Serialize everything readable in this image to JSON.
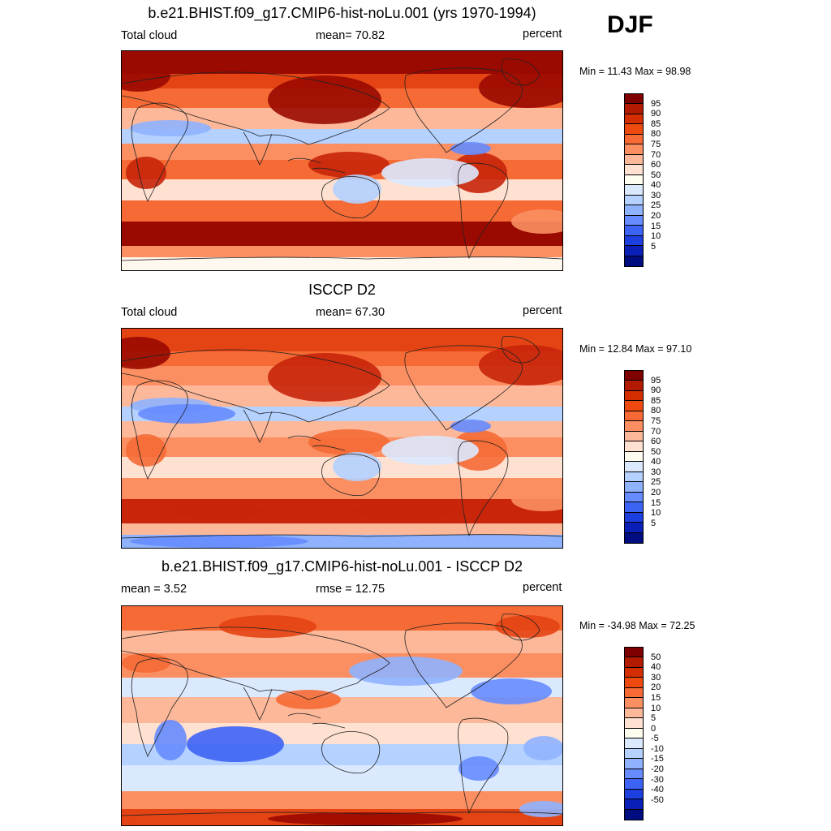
{
  "season": "DJF",
  "panels": [
    {
      "title": "b.e21.BHIST.f09_g17.CMIP6-hist-noLu.001 (yrs 1970-1994)",
      "left_label": "Total cloud",
      "center_label": "mean=  70.82",
      "right_label": "percent",
      "minmax": "Min =  11.43 Max =  98.98",
      "colorbar_ticks": [
        "95",
        "90",
        "85",
        "80",
        "75",
        "70",
        "60",
        "50",
        "40",
        "30",
        "25",
        "20",
        "15",
        "10",
        "5"
      ],
      "colorbar_colors": [
        "#7f0000",
        "#b21b00",
        "#d42e00",
        "#ee4a0f",
        "#f76a35",
        "#fb8f62",
        "#fdb89a",
        "#fee1d0",
        "#fffdf0",
        "#dbe9ff",
        "#b4d1ff",
        "#8fb2ff",
        "#668cff",
        "#3d63f5",
        "#1c3fe0",
        "#0a1fb8",
        "#000d80"
      ]
    },
    {
      "title": "ISCCP D2",
      "left_label": "Total cloud",
      "center_label": "mean=  67.30",
      "right_label": "percent",
      "minmax": "Min =  12.84 Max =  97.10",
      "colorbar_ticks": [
        "95",
        "90",
        "85",
        "80",
        "75",
        "70",
        "60",
        "50",
        "40",
        "30",
        "25",
        "20",
        "15",
        "10",
        "5"
      ],
      "colorbar_colors": [
        "#7f0000",
        "#b21b00",
        "#d42e00",
        "#ee4a0f",
        "#f76a35",
        "#fb8f62",
        "#fdb89a",
        "#fee1d0",
        "#fffdf0",
        "#dbe9ff",
        "#b4d1ff",
        "#8fb2ff",
        "#668cff",
        "#3d63f5",
        "#1c3fe0",
        "#0a1fb8",
        "#000d80"
      ]
    },
    {
      "title": "b.e21.BHIST.f09_g17.CMIP6-hist-noLu.001 - ISCCP D2",
      "left_label": "mean =   3.52",
      "center_label": "rmse =   12.75",
      "right_label": "percent",
      "minmax": "Min = -34.98 Max =  72.25",
      "colorbar_ticks": [
        "50",
        "40",
        "30",
        "20",
        "15",
        "10",
        "5",
        "0",
        "-5",
        "-10",
        "-15",
        "-20",
        "-30",
        "-40",
        "-50"
      ],
      "colorbar_colors": [
        "#7f0000",
        "#b21b00",
        "#d42e00",
        "#ee4a0f",
        "#f76a35",
        "#fb8f62",
        "#fdb89a",
        "#fee1d0",
        "#fffdf0",
        "#dbe9ff",
        "#b4d1ff",
        "#8fb2ff",
        "#668cff",
        "#3d63f5",
        "#1c3fe0",
        "#0a1fb8",
        "#000d80"
      ]
    }
  ],
  "chart_data": [
    {
      "type": "heatmap",
      "title": "b.e21.BHIST.f09_g17.CMIP6-hist-noLu.001 (yrs 1970-1994)",
      "variable": "Total cloud",
      "units": "percent",
      "mean": 70.82,
      "min": 11.43,
      "max": 98.98,
      "levels": [
        5,
        10,
        15,
        20,
        25,
        30,
        40,
        50,
        60,
        70,
        75,
        80,
        85,
        90,
        95
      ]
    },
    {
      "type": "heatmap",
      "title": "ISCCP D2",
      "variable": "Total cloud",
      "units": "percent",
      "mean": 67.3,
      "min": 12.84,
      "max": 97.1,
      "levels": [
        5,
        10,
        15,
        20,
        25,
        30,
        40,
        50,
        60,
        70,
        75,
        80,
        85,
        90,
        95
      ]
    },
    {
      "type": "heatmap",
      "title": "b.e21.BHIST.f09_g17.CMIP6-hist-noLu.001 - ISCCP D2",
      "units": "percent",
      "mean": 3.52,
      "rmse": 12.75,
      "min": -34.98,
      "max": 72.25,
      "levels": [
        -50,
        -40,
        -30,
        -20,
        -15,
        -10,
        -5,
        0,
        5,
        10,
        15,
        20,
        30,
        40,
        50
      ]
    }
  ]
}
